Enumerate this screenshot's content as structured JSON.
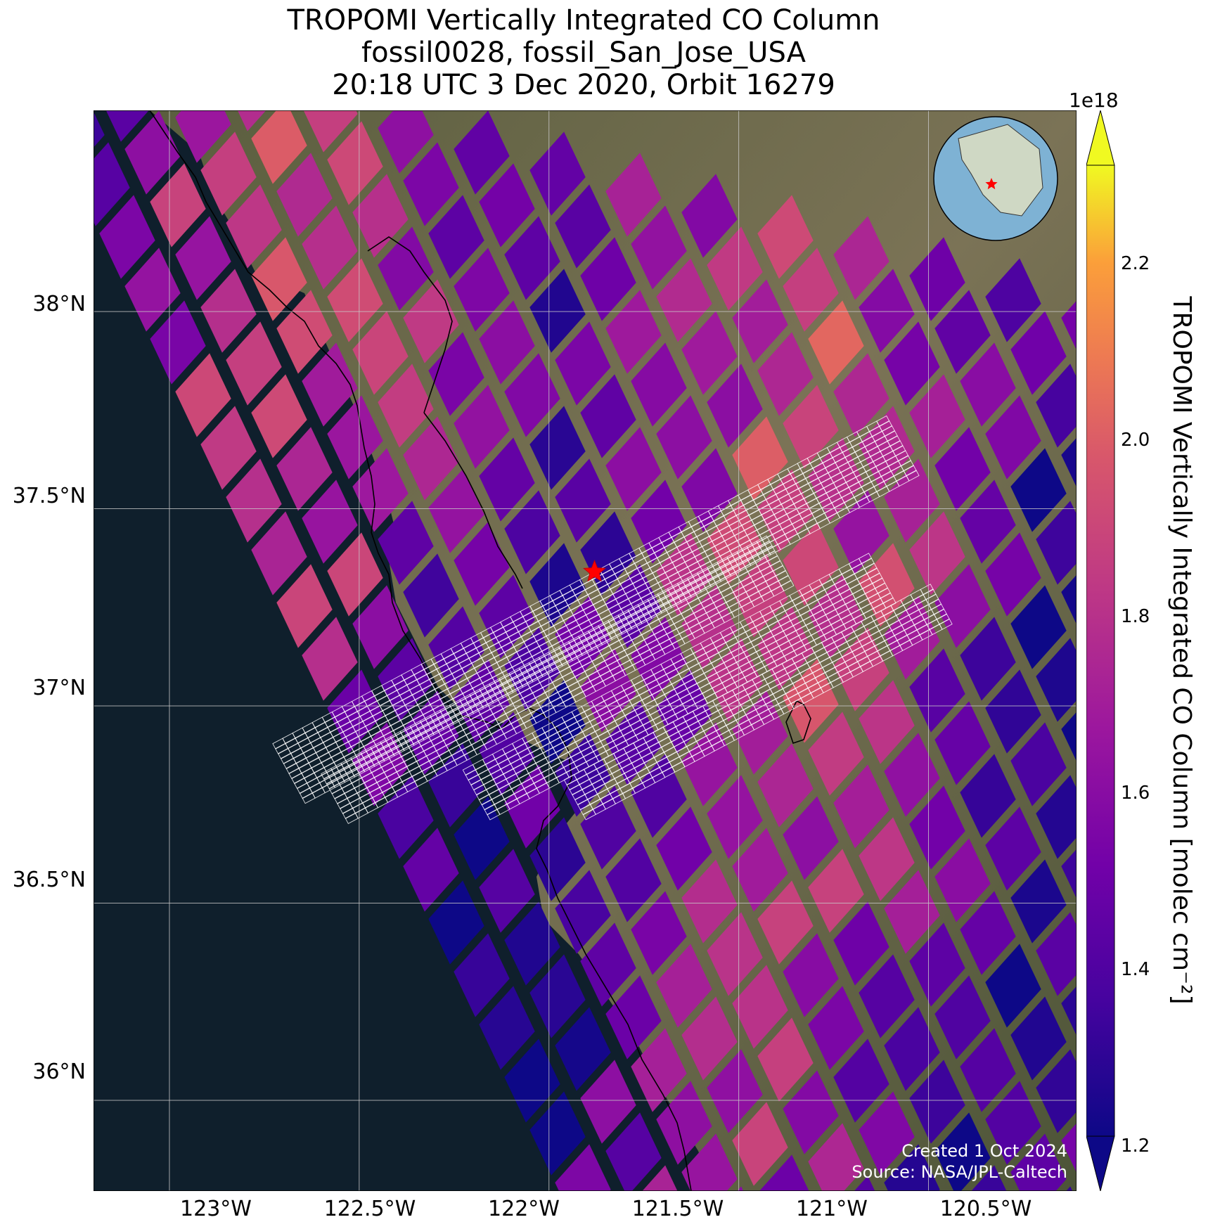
{
  "title": {
    "line1": "TROPOMI Vertically Integrated CO Column",
    "line2": "fossil0028, fossil_San_Jose_USA",
    "line3": "20:18 UTC 3 Dec 2020, Orbit 16279"
  },
  "axes": {
    "lat_ticks": [
      "38°N",
      "37.5°N",
      "37°N",
      "36.5°N",
      "36°N"
    ],
    "lon_ticks": [
      "123°W",
      "122.5°W",
      "122°W",
      "121.5°W",
      "121°W",
      "120.5°W"
    ],
    "lat_range": [
      35.77,
      38.51
    ],
    "lon_range": [
      -123.2,
      -120.61
    ]
  },
  "colorbar": {
    "label": "TROPOMI Vertically Integrated CO Column [molec cm⁻²]",
    "multiplier": "1e18",
    "ticks": [
      "2.2",
      "2.0",
      "1.8",
      "1.6",
      "1.4",
      "1.2"
    ],
    "range": [
      1.2,
      2.3
    ],
    "colormap": "plasma",
    "extend": "both"
  },
  "site": {
    "name": "fossil_San_Jose_USA",
    "lat": 37.34,
    "lon": -121.88,
    "marker": "star",
    "color": "#ff0000"
  },
  "credit": {
    "line1": "Created 1 Oct 2024",
    "line2": "Source: NASA/JPL-Caltech"
  },
  "colors": {
    "ocean": "#0f1f2c",
    "land": "#6e6a4c",
    "grid": "#c8c8c8",
    "target_grid": "#ffffff"
  }
}
